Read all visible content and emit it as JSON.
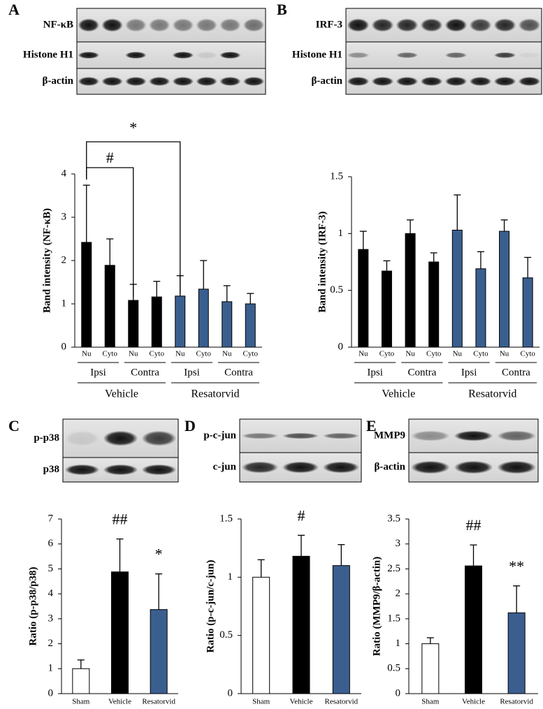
{
  "chart_data": [
    {
      "type": "bar",
      "panel": "A",
      "blot_labels": [
        "NF-κB",
        "Histone H1",
        "β-actin"
      ],
      "ylabel": "Band intensity (NF-κB)",
      "ylim": [
        0,
        4
      ],
      "yticks": [
        0,
        1,
        2,
        3,
        4
      ],
      "categories": [
        "Nu",
        "Cyto",
        "Nu",
        "Cyto",
        "Nu",
        "Cyto",
        "Nu",
        "Cyto"
      ],
      "subgroups": [
        "Ipsi",
        "Contra",
        "Ipsi",
        "Contra"
      ],
      "groups": [
        "Vehicle",
        "Resatorvid"
      ],
      "values": [
        2.42,
        1.89,
        1.08,
        1.16,
        1.18,
        1.34,
        1.05,
        1.0
      ],
      "errors": [
        1.32,
        0.61,
        0.37,
        0.36,
        0.47,
        0.66,
        0.37,
        0.24
      ],
      "colors": [
        "#000000",
        "#000000",
        "#000000",
        "#000000",
        "#3a5f8f",
        "#3a5f8f",
        "#3a5f8f",
        "#3a5f8f"
      ],
      "annotations": [
        "#",
        "*"
      ]
    },
    {
      "type": "bar",
      "panel": "B",
      "blot_labels": [
        "IRF-3",
        "Histone H1",
        "β-actin"
      ],
      "ylabel": "Band intensity (IRF-3)",
      "ylim": [
        0,
        1.5
      ],
      "yticks": [
        0,
        0.5,
        1,
        1.5
      ],
      "categories": [
        "Nu",
        "Cyto",
        "Nu",
        "Cyto",
        "Nu",
        "Cyto",
        "Nu",
        "Cyto"
      ],
      "subgroups": [
        "Ipsi",
        "Contra",
        "Ipsi",
        "Contra"
      ],
      "groups": [
        "Vehicle",
        "Resatorvid"
      ],
      "values": [
        0.86,
        0.67,
        1.0,
        0.75,
        1.03,
        0.69,
        1.02,
        0.61
      ],
      "errors": [
        0.16,
        0.09,
        0.12,
        0.08,
        0.31,
        0.15,
        0.1,
        0.18
      ],
      "colors": [
        "#000000",
        "#000000",
        "#000000",
        "#000000",
        "#3a5f8f",
        "#3a5f8f",
        "#3a5f8f",
        "#3a5f8f"
      ]
    },
    {
      "type": "bar",
      "panel": "C",
      "blot_labels": [
        "p-p38",
        "p38"
      ],
      "ylabel": "Ratio (p-p38/p38)",
      "ylim": [
        0,
        7
      ],
      "yticks": [
        0,
        1,
        2,
        3,
        4,
        5,
        6,
        7
      ],
      "categories": [
        "Sham",
        "Vehicle",
        "Resatorvid"
      ],
      "values": [
        1.0,
        4.88,
        3.37
      ],
      "errors": [
        0.35,
        1.32,
        1.43
      ],
      "colors": [
        "#ffffff",
        "#000000",
        "#3a5f8f"
      ],
      "annotations": [
        null,
        "##",
        "*"
      ]
    },
    {
      "type": "bar",
      "panel": "D",
      "blot_labels": [
        "p-c-jun",
        "c-jun"
      ],
      "ylabel": "Ratio (p-c-jun/c-jun)",
      "ylim": [
        0,
        1.5
      ],
      "yticks": [
        0,
        0.5,
        1,
        1.5
      ],
      "categories": [
        "Sham",
        "Vehicle",
        "Resatorvid"
      ],
      "values": [
        1.0,
        1.18,
        1.1
      ],
      "errors": [
        0.15,
        0.18,
        0.18
      ],
      "colors": [
        "#ffffff",
        "#000000",
        "#3a5f8f"
      ],
      "annotations": [
        null,
        "#",
        null
      ]
    },
    {
      "type": "bar",
      "panel": "E",
      "blot_labels": [
        "MMP9",
        "β-actin"
      ],
      "ylabel": "Ratio (MMP9/β-actin)",
      "ylim": [
        0,
        3.5
      ],
      "yticks": [
        0,
        0.5,
        1,
        1.5,
        2,
        2.5,
        3,
        3.5
      ],
      "categories": [
        "Sham",
        "Vehicle",
        "Resatorvid"
      ],
      "values": [
        1.0,
        2.56,
        1.62
      ],
      "errors": [
        0.12,
        0.42,
        0.54
      ],
      "colors": [
        "#ffffff",
        "#000000",
        "#3a5f8f"
      ],
      "annotations": [
        null,
        "##",
        "**"
      ]
    }
  ]
}
